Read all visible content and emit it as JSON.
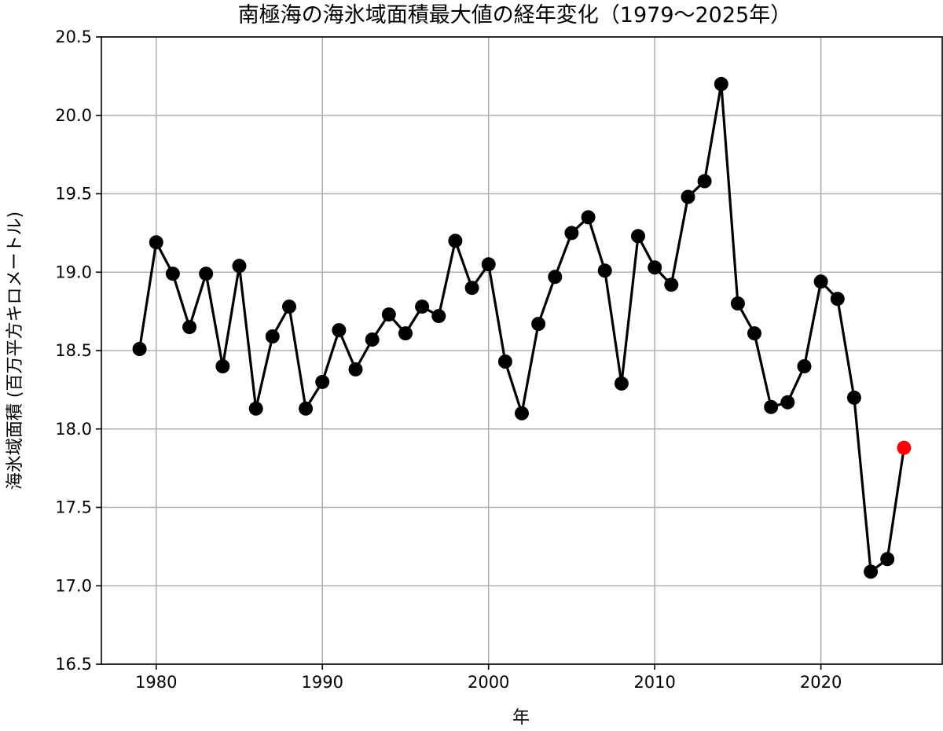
{
  "chart_data": {
    "type": "line",
    "title": "南極海の海氷域面積最大値の経年変化（1979〜2025年）",
    "xlabel": "年",
    "ylabel": "海氷域面積 (百万平方キロメートル)",
    "xlim": [
      1976.7,
      2027.3
    ],
    "ylim": [
      16.5,
      20.5
    ],
    "xticks": [
      1980,
      1990,
      2000,
      2010,
      2020
    ],
    "yticks": [
      "16.5",
      "17.0",
      "17.5",
      "18.0",
      "18.5",
      "19.0",
      "19.5",
      "20.0",
      "20.5"
    ],
    "grid": true,
    "colors": {
      "line": "#000000",
      "marker": "#000000",
      "highlight": "#ff0000",
      "grid": "#b0b0b0"
    },
    "highlight_year": 2025,
    "series": [
      {
        "x": [
          1979,
          1980,
          1981,
          1982,
          1983,
          1984,
          1985,
          1986,
          1987,
          1988,
          1989,
          1990,
          1991,
          1992,
          1993,
          1994,
          1995,
          1996,
          1997,
          1998,
          1999,
          2000,
          2001,
          2002,
          2003,
          2004,
          2005,
          2006,
          2007,
          2008,
          2009,
          2010,
          2011,
          2012,
          2013,
          2014,
          2015,
          2016,
          2017,
          2018,
          2019,
          2020,
          2021,
          2022,
          2023,
          2024,
          2025
        ],
        "values": [
          18.51,
          19.19,
          18.99,
          18.65,
          18.99,
          18.4,
          19.04,
          18.13,
          18.59,
          18.78,
          18.13,
          18.3,
          18.63,
          18.38,
          18.57,
          18.73,
          18.61,
          18.78,
          18.72,
          19.2,
          18.9,
          19.05,
          18.43,
          18.1,
          18.67,
          18.97,
          19.25,
          19.35,
          19.01,
          18.29,
          19.23,
          19.03,
          18.92,
          19.48,
          19.58,
          20.2,
          18.8,
          18.61,
          18.14,
          18.17,
          18.4,
          18.94,
          18.83,
          18.2,
          17.09,
          17.17,
          17.88
        ]
      }
    ]
  }
}
